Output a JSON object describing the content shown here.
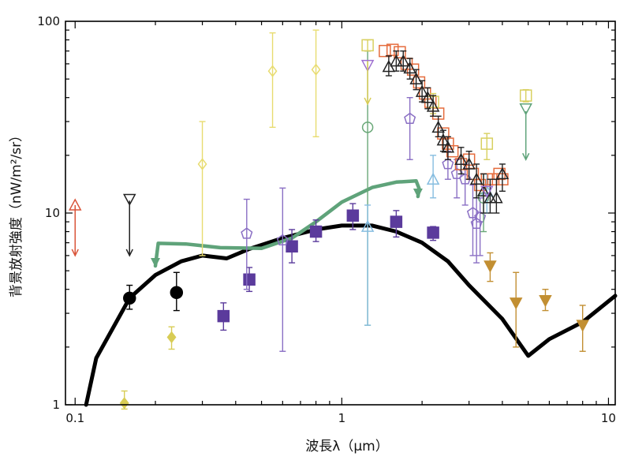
{
  "chart_data": {
    "type": "scatter",
    "title": "",
    "xlabel": "波長λ（μm）",
    "ylabel": "背景放射強度（nW/m²/sr）",
    "xscale": "log",
    "yscale": "log",
    "xlim": [
      0.092,
      10.6
    ],
    "ylim": [
      1,
      100
    ],
    "x_ticks": [
      {
        "value": 0.1,
        "label": "0.1"
      },
      {
        "value": 1,
        "label": "1"
      },
      {
        "value": 10,
        "label": "10"
      }
    ],
    "y_ticks": [
      {
        "value": 1,
        "label": "1"
      },
      {
        "value": 10,
        "label": "10"
      },
      {
        "value": 100,
        "label": "100"
      }
    ],
    "grid": false,
    "legend": false,
    "lines": [
      {
        "color": "#000000",
        "points": [
          [
            0.11,
            1.0
          ],
          [
            0.12,
            1.75
          ],
          [
            0.16,
            3.6
          ],
          [
            0.2,
            4.75
          ],
          [
            0.25,
            5.6
          ],
          [
            0.3,
            6.0
          ],
          [
            0.37,
            5.8
          ],
          [
            0.45,
            6.5
          ],
          [
            0.6,
            7.4
          ],
          [
            0.8,
            8.2
          ],
          [
            1.0,
            8.6
          ],
          [
            1.3,
            8.6
          ],
          [
            1.6,
            8.0
          ],
          [
            2.0,
            7.0
          ],
          [
            2.5,
            5.6
          ],
          [
            3.0,
            4.2
          ],
          [
            4.0,
            2.8
          ],
          [
            5.0,
            1.8
          ],
          [
            6.0,
            2.2
          ],
          [
            8.0,
            2.7
          ],
          [
            10.6,
            3.7
          ]
        ]
      },
      {
        "color": "#5fa37a",
        "points": [
          [
            0.2,
            5.3
          ],
          [
            0.205,
            6.95
          ],
          [
            0.26,
            6.9
          ],
          [
            0.35,
            6.6
          ],
          [
            0.5,
            6.55
          ],
          [
            0.65,
            7.4
          ],
          [
            0.8,
            9.0
          ],
          [
            1.0,
            11.4
          ],
          [
            1.3,
            13.6
          ],
          [
            1.6,
            14.5
          ],
          [
            1.9,
            14.7
          ],
          [
            1.95,
            13.4
          ],
          [
            1.93,
            12.2
          ]
        ]
      }
    ],
    "series": [
      {
        "marker": "circle-filled",
        "color": "#000000",
        "points": [
          {
            "x": 0.16,
            "y": 3.6,
            "lo": 3.15,
            "hi": 4.2
          },
          {
            "x": 0.24,
            "y": 3.85,
            "lo": 3.1,
            "hi": 4.9
          }
        ]
      },
      {
        "marker": "diamond-filled",
        "color": "#d8cc55",
        "points": [
          {
            "x": 0.153,
            "y": 1.02,
            "lo": 0.95,
            "hi": 1.18
          },
          {
            "x": 0.23,
            "y": 2.25,
            "lo": 1.95,
            "hi": 2.55
          }
        ]
      },
      {
        "marker": "diamond-open",
        "color": "#e8dc70",
        "points": [
          {
            "x": 0.3,
            "y": 18,
            "lo": 6,
            "hi": 30
          },
          {
            "x": 0.55,
            "y": 55,
            "lo": 28,
            "hi": 87
          },
          {
            "x": 0.8,
            "y": 56,
            "lo": 25,
            "hi": 90
          }
        ]
      },
      {
        "marker": "square-filled",
        "color": "#5b3b9c",
        "points": [
          {
            "x": 0.36,
            "y": 2.9,
            "lo": 2.45,
            "hi": 3.4
          },
          {
            "x": 0.45,
            "y": 4.5,
            "lo": 3.9,
            "hi": 5.2
          },
          {
            "x": 0.65,
            "y": 6.7,
            "lo": 5.5,
            "hi": 8.2
          },
          {
            "x": 0.8,
            "y": 8.0,
            "lo": 7.1,
            "hi": 9.2
          },
          {
            "x": 1.1,
            "y": 9.7,
            "lo": 8.2,
            "hi": 11.2
          },
          {
            "x": 1.6,
            "y": 9.0,
            "lo": 7.5,
            "hi": 10.3
          },
          {
            "x": 2.2,
            "y": 7.9,
            "lo": 7.2,
            "hi": 8.5
          }
        ]
      },
      {
        "marker": "pentagon-open",
        "color": "#8a6fc4",
        "points": [
          {
            "x": 0.44,
            "y": 7.8,
            "lo": 4.0,
            "hi": 11.8
          },
          {
            "x": 0.6,
            "y": 7.2,
            "lo": 1.9,
            "hi": 13.5
          },
          {
            "x": 1.8,
            "y": 31,
            "lo": 19,
            "hi": 40
          },
          {
            "x": 2.5,
            "y": 18,
            "lo": 15,
            "hi": 21
          },
          {
            "x": 2.7,
            "y": 16,
            "lo": 12,
            "hi": 19
          },
          {
            "x": 2.9,
            "y": 15,
            "lo": 11,
            "hi": 18
          },
          {
            "x": 3.1,
            "y": 10,
            "lo": 6,
            "hi": 14
          },
          {
            "x": 3.2,
            "y": 8.8,
            "lo": 5.5,
            "hi": 12
          },
          {
            "x": 3.3,
            "y": 9.5,
            "lo": 6,
            "hi": 12
          }
        ]
      },
      {
        "marker": "circle-open",
        "color": "#6aa878",
        "points": [
          {
            "x": 1.25,
            "y": 28,
            "lo": 2.6,
            "hi": 70
          },
          {
            "x": 3.4,
            "y": 12,
            "lo": 8,
            "hi": 16
          }
        ]
      },
      {
        "marker": "triangle-open",
        "color": "#86bde0",
        "points": [
          {
            "x": 1.25,
            "y": 8.5,
            "lo": 2.6,
            "hi": 11
          },
          {
            "x": 2.2,
            "y": 15,
            "lo": 12,
            "hi": 20
          },
          {
            "x": 3.5,
            "y": 13,
            "lo": 10,
            "hi": 16
          }
        ]
      },
      {
        "marker": "square-open",
        "color": "#e56b3c",
        "points": [
          {
            "x": 1.45,
            "y": 70
          },
          {
            "x": 1.55,
            "y": 71
          },
          {
            "x": 1.65,
            "y": 69
          },
          {
            "x": 1.75,
            "y": 60
          },
          {
            "x": 1.85,
            "y": 56
          },
          {
            "x": 1.95,
            "y": 48
          },
          {
            "x": 2.05,
            "y": 42
          },
          {
            "x": 2.15,
            "y": 38
          },
          {
            "x": 2.3,
            "y": 33
          },
          {
            "x": 2.4,
            "y": 26
          },
          {
            "x": 2.5,
            "y": 23
          },
          {
            "x": 2.6,
            "y": 21
          },
          {
            "x": 2.8,
            "y": 18
          },
          {
            "x": 3.0,
            "y": 19
          },
          {
            "x": 3.1,
            "y": 16
          },
          {
            "x": 3.3,
            "y": 14
          },
          {
            "x": 3.5,
            "y": 15
          },
          {
            "x": 3.7,
            "y": 15
          },
          {
            "x": 3.9,
            "y": 16
          },
          {
            "x": 4.0,
            "y": 15
          }
        ]
      },
      {
        "marker": "square-open",
        "color": "#d8d060",
        "points": [
          {
            "x": 1.25,
            "y": 75,
            "lo": 70,
            "hi": 80
          },
          {
            "x": 2.2,
            "y": 38,
            "lo": 33,
            "hi": 42
          },
          {
            "x": 3.5,
            "y": 23,
            "lo": 19,
            "hi": 26
          },
          {
            "x": 4.9,
            "y": 41,
            "lo": 38,
            "hi": 44
          }
        ]
      },
      {
        "marker": "triangle-up-open",
        "color": "#222222",
        "points": [
          {
            "x": 1.5,
            "y": 58,
            "lo": 52,
            "hi": 66
          },
          {
            "x": 1.6,
            "y": 62,
            "lo": 55,
            "hi": 70
          },
          {
            "x": 1.7,
            "y": 62,
            "lo": 55,
            "hi": 70
          },
          {
            "x": 1.8,
            "y": 57,
            "lo": 50,
            "hi": 64
          },
          {
            "x": 1.9,
            "y": 50,
            "lo": 44,
            "hi": 56
          },
          {
            "x": 2.0,
            "y": 43,
            "lo": 38,
            "hi": 49
          },
          {
            "x": 2.1,
            "y": 40,
            "lo": 35,
            "hi": 45
          },
          {
            "x": 2.2,
            "y": 36,
            "lo": 32,
            "hi": 41
          },
          {
            "x": 2.3,
            "y": 28,
            "lo": 25,
            "hi": 32
          },
          {
            "x": 2.4,
            "y": 24,
            "lo": 21,
            "hi": 27
          },
          {
            "x": 2.5,
            "y": 22,
            "lo": 19,
            "hi": 25
          },
          {
            "x": 2.8,
            "y": 19,
            "lo": 16,
            "hi": 22
          },
          {
            "x": 3.0,
            "y": 18,
            "lo": 15,
            "hi": 21
          },
          {
            "x": 3.2,
            "y": 15,
            "lo": 12,
            "hi": 18
          },
          {
            "x": 3.4,
            "y": 13,
            "lo": 10,
            "hi": 16
          },
          {
            "x": 3.6,
            "y": 12,
            "lo": 10,
            "hi": 15
          },
          {
            "x": 3.8,
            "y": 12,
            "lo": 10,
            "hi": 15
          },
          {
            "x": 4.0,
            "y": 16,
            "lo": 13,
            "hi": 18
          }
        ]
      },
      {
        "marker": "triangle-down-filled",
        "color": "#c28f32",
        "points": [
          {
            "x": 3.6,
            "y": 5.3,
            "lo": 4.4,
            "hi": 6.2
          },
          {
            "x": 4.5,
            "y": 3.4,
            "lo": 2.0,
            "hi": 4.9
          },
          {
            "x": 5.8,
            "y": 3.5,
            "lo": 3.1,
            "hi": 4.0
          },
          {
            "x": 8.0,
            "y": 2.6,
            "lo": 1.9,
            "hi": 3.3
          }
        ]
      },
      {
        "marker": "triangle-down-open",
        "color": "#222222",
        "points": [
          {
            "x": 0.16,
            "y": 11.8
          }
        ]
      },
      {
        "marker": "triangle-down-open",
        "color": "#9d6fd0",
        "points": [
          {
            "x": 1.25,
            "y": 59
          },
          {
            "x": 3.5,
            "y": 13
          }
        ]
      },
      {
        "marker": "triangle-down-open",
        "color": "#5fa37a",
        "points": [
          {
            "x": 4.9,
            "y": 35
          }
        ]
      }
    ],
    "upper_limits": [
      {
        "x": 0.1,
        "y": 11.0,
        "to": 6.0,
        "marker": "triangle-up-open",
        "color": "#d9553a"
      },
      {
        "x": 0.16,
        "y": 11.6,
        "to": 6.0,
        "marker": "none",
        "color": "#222222"
      },
      {
        "x": 1.25,
        "y": 62,
        "to": 37,
        "marker": "none",
        "color": "#d8cc55"
      },
      {
        "x": 4.9,
        "y": 34,
        "to": 19,
        "marker": "none",
        "color": "#5fa37a"
      }
    ]
  }
}
